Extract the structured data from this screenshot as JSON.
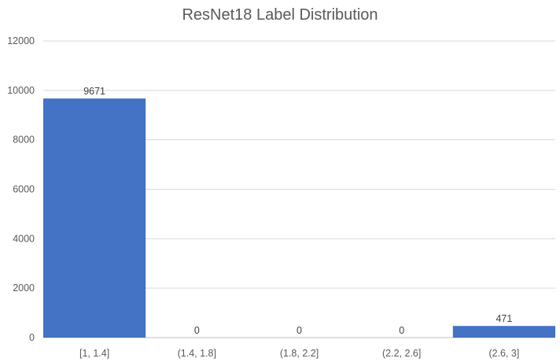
{
  "chart_data": {
    "type": "bar",
    "title": "ResNet18 Label Distribution",
    "xlabel": "",
    "ylabel": "",
    "categories": [
      "[1, 1.4]",
      "(1.4, 1.8]",
      "(1.8, 2.2]",
      "(2.2, 2.6]",
      "(2.6, 3]"
    ],
    "values": [
      9671,
      0,
      0,
      0,
      471
    ],
    "data_labels": [
      "9671",
      "0",
      "0",
      "0",
      "471"
    ],
    "ylim": [
      0,
      12000
    ],
    "yticks": [
      0,
      2000,
      4000,
      6000,
      8000,
      10000,
      12000
    ],
    "ytick_labels": [
      "0",
      "2000",
      "4000",
      "6000",
      "8000",
      "10000",
      "12000"
    ],
    "grid": true,
    "legend": "none",
    "bar_color": "#4472C4",
    "grid_color": "#d9d9d9",
    "axis_color": "#bfbfbf"
  }
}
